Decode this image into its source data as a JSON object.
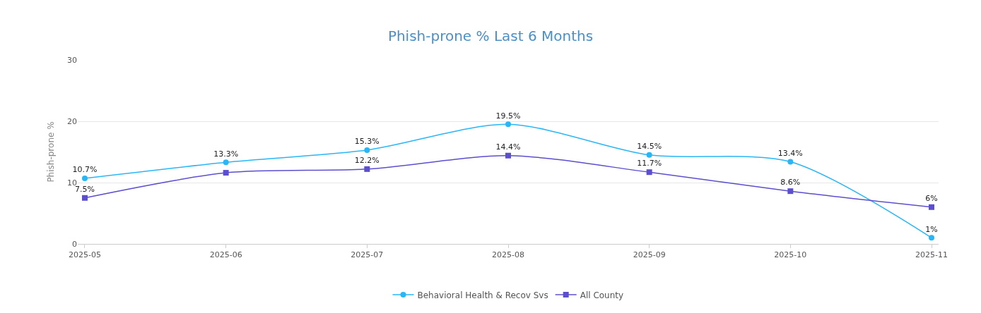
{
  "chart_data": {
    "type": "line",
    "title": "Phish-prone % Last 6 Months",
    "ylabel": "Phish-prone %",
    "categories": [
      "2025-05",
      "2025-06",
      "2025-07",
      "2025-08",
      "2025-09",
      "2025-10",
      "2025-11"
    ],
    "series": [
      {
        "name": "Behavioral Health & Recov Svs",
        "color": "#29b6f6",
        "marker": "circle",
        "values": [
          10.7,
          13.3,
          15.3,
          19.5,
          14.5,
          13.4,
          1
        ],
        "value_labels": [
          "10.7%",
          "13.3%",
          "15.3%",
          "19.5%",
          "14.5%",
          "13.4%",
          "1%"
        ]
      },
      {
        "name": "All County",
        "color": "#5b4fcf",
        "marker": "square",
        "values": [
          7.5,
          11.6,
          12.2,
          14.4,
          11.7,
          8.6,
          6
        ],
        "value_labels": [
          "7.5%",
          null,
          "12.2%",
          "14.4%",
          "11.7%",
          "8.6%",
          "6%"
        ]
      }
    ],
    "ylim": [
      0,
      30
    ],
    "yticks": [
      0,
      10,
      20,
      30
    ],
    "grid": "y",
    "legend": "bottom",
    "line_style": "solid"
  }
}
